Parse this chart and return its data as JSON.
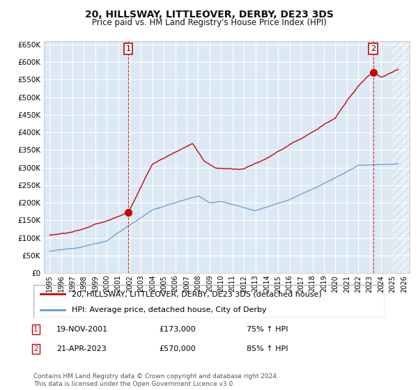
{
  "title": "20, HILLSWAY, LITTLEOVER, DERBY, DE23 3DS",
  "subtitle": "Price paid vs. HM Land Registry's House Price Index (HPI)",
  "legend_property": "20, HILLSWAY, LITTLEOVER, DERBY, DE23 3DS (detached house)",
  "legend_hpi": "HPI: Average price, detached house, City of Derby",
  "footer": "Contains HM Land Registry data © Crown copyright and database right 2024.\nThis data is licensed under the Open Government Licence v3.0.",
  "transaction1_date": "19-NOV-2001",
  "transaction1_price": "£173,000",
  "transaction1_hpi": "75% ↑ HPI",
  "transaction2_date": "21-APR-2023",
  "transaction2_price": "£570,000",
  "transaction2_hpi": "85% ↑ HPI",
  "ylim": [
    0,
    660000
  ],
  "yticks": [
    0,
    50000,
    100000,
    150000,
    200000,
    250000,
    300000,
    350000,
    400000,
    450000,
    500000,
    550000,
    600000,
    650000
  ],
  "fig_bg": "#ffffff",
  "plot_bg": "#dce9f5",
  "grid_color": "#ffffff",
  "red_color": "#cc0000",
  "blue_color": "#6699cc",
  "transaction1_x": 2001.88,
  "transaction1_y": 173000,
  "transaction2_x": 2023.3,
  "transaction2_y": 570000,
  "hatch_start": 2025.0,
  "xlim_left": 1994.5,
  "xlim_right": 2026.5
}
